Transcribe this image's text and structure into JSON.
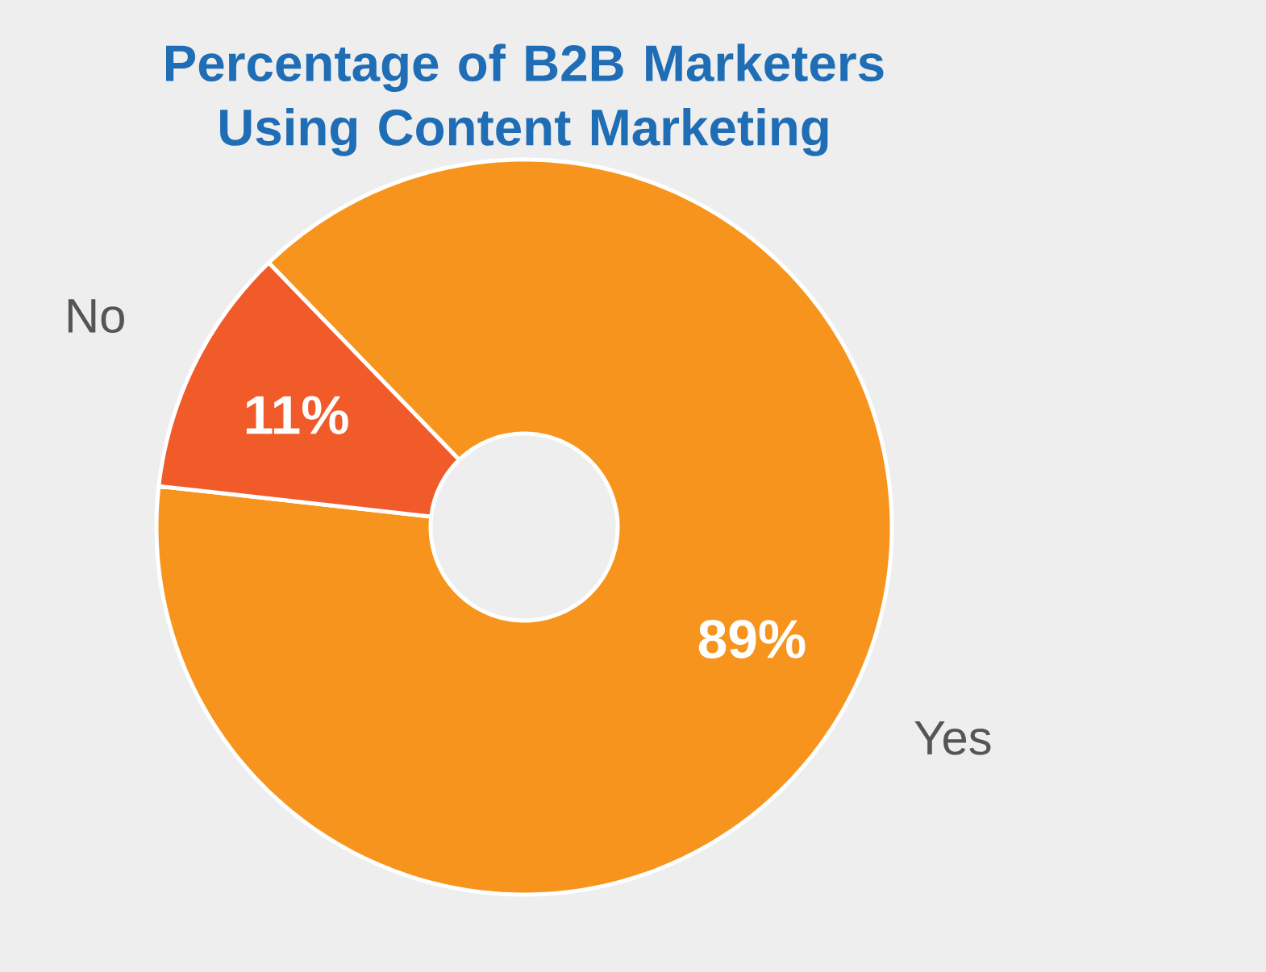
{
  "chart_data": {
    "type": "donut",
    "title": "Percentage of B2B Marketers Using Content Marketing",
    "categories": [
      "Yes",
      "No"
    ],
    "values": [
      89,
      11
    ],
    "value_labels": [
      "89%",
      "11%"
    ],
    "colors": [
      "#f7941d",
      "#f15a29"
    ]
  }
}
